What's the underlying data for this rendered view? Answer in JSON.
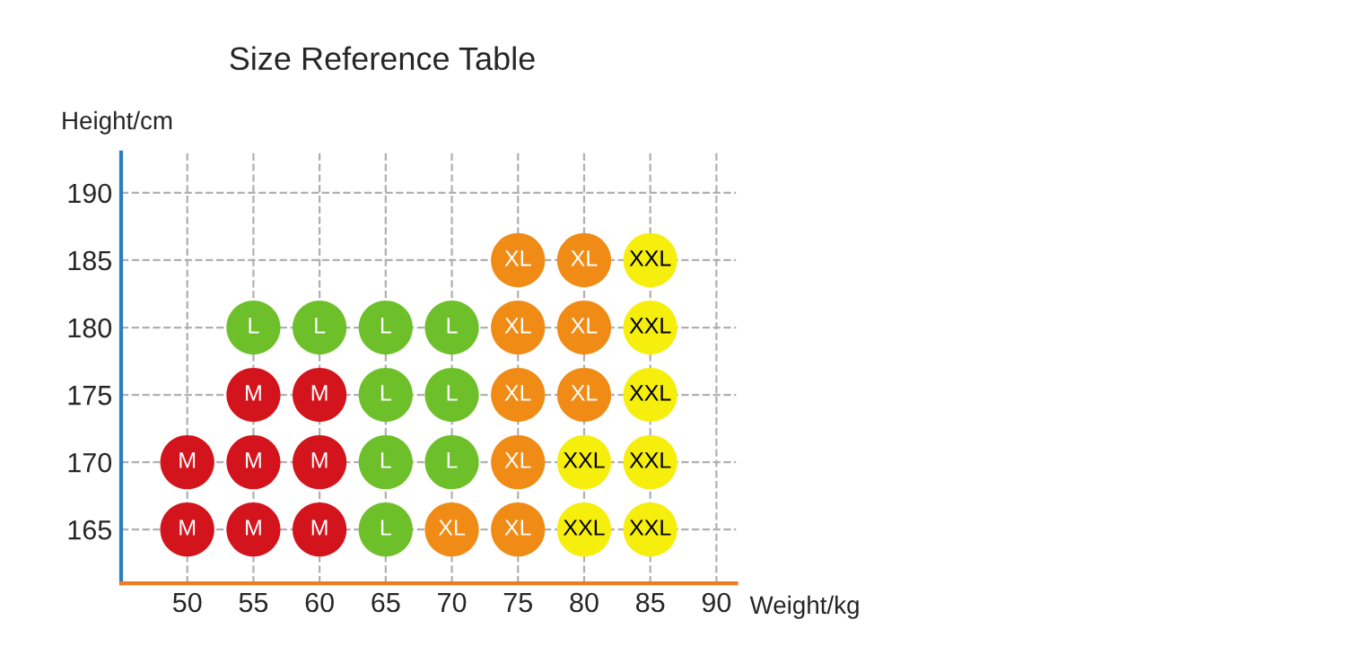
{
  "chart_data": {
    "type": "scatter",
    "title": "Size Reference Table",
    "xlabel": "Weight/kg",
    "ylabel": "Height/cm",
    "xlim": [
      45,
      91.5
    ],
    "ylim": [
      161,
      193
    ],
    "xticks": [
      50,
      55,
      60,
      65,
      70,
      75,
      80,
      85,
      90
    ],
    "yticks": [
      165,
      170,
      175,
      180,
      185,
      190
    ],
    "grid": true,
    "legend": false,
    "marker": "circle",
    "series": [
      {
        "name": "M",
        "color": "#d3141c",
        "x": [
          55,
          60,
          50,
          55,
          60,
          50,
          55,
          60
        ],
        "values": [
          175,
          175,
          170,
          170,
          170,
          165,
          165,
          165
        ]
      },
      {
        "name": "L",
        "color": "#6ec02a",
        "x": [
          55,
          60,
          65,
          70,
          65,
          70,
          65,
          70,
          65
        ],
        "values": [
          180,
          180,
          180,
          180,
          175,
          175,
          170,
          170,
          165
        ]
      },
      {
        "name": "XL",
        "color": "#f08c16",
        "x": [
          75,
          80,
          75,
          80,
          75,
          80,
          75,
          70,
          75
        ],
        "values": [
          185,
          185,
          180,
          180,
          175,
          175,
          170,
          165,
          165
        ]
      },
      {
        "name": "XXL",
        "color": "#f6ee0c",
        "x": [
          85,
          85,
          85,
          80,
          85,
          80,
          85
        ],
        "values": [
          185,
          180,
          175,
          170,
          170,
          165,
          165
        ]
      }
    ]
  }
}
